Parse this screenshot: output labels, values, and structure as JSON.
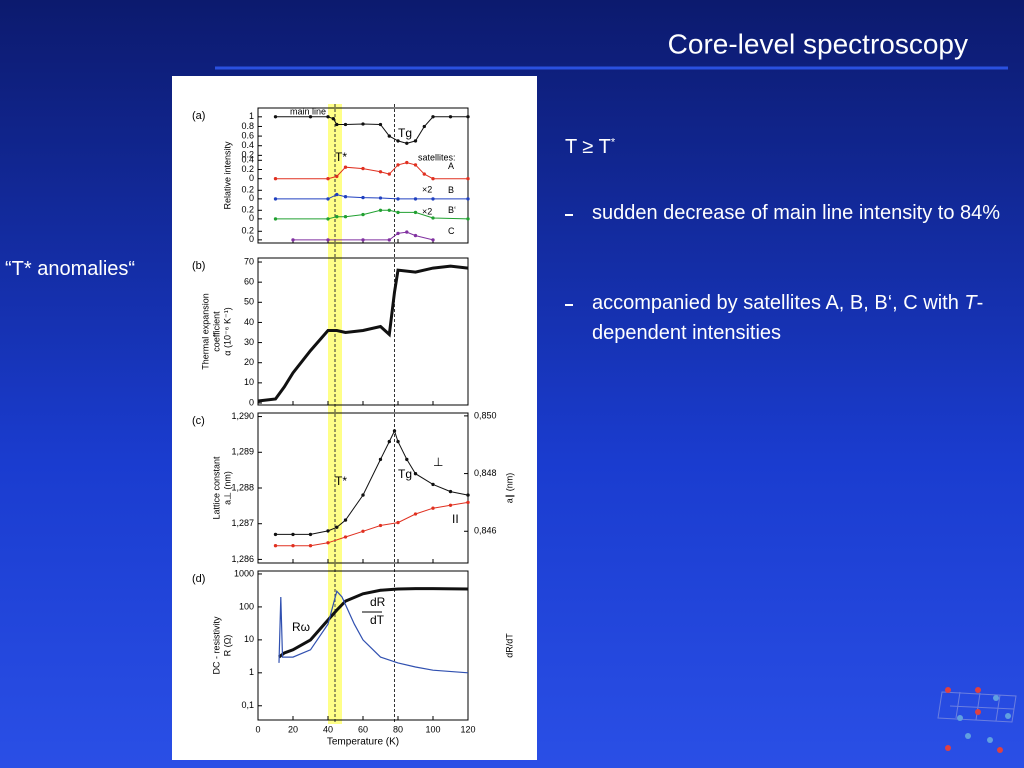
{
  "slide": {
    "title": "Core-level spectroscopy",
    "left_note": "“T* anomalies“",
    "heading": {
      "text": "T ≥ T",
      "sup": "*"
    },
    "bullets": [
      {
        "parts": [
          "sudden decrease of main line intensity to 84%"
        ]
      },
      {
        "parts": [
          "accompanied by satellites A, B, B‘, C with ",
          "T",
          "-dependent intensities"
        ]
      }
    ]
  },
  "figure": {
    "xlim": [
      0,
      120
    ],
    "xticks": [
      0,
      20,
      40,
      60,
      80,
      100,
      120
    ],
    "xlabel": "Temperature (K)",
    "tstar": 44,
    "tstar_band": [
      40,
      48
    ],
    "tg": 78,
    "panels": [
      {
        "label": "(a)",
        "ylabel": [
          "Relative intensity"
        ],
        "annotations": [
          "main line",
          "T*",
          "Tg",
          "satellites:",
          "×2",
          "×2"
        ],
        "traces": [
          {
            "name": "main line",
            "color": "#111111",
            "ylim": [
              0,
              1.1
            ],
            "yticks": [
              1,
              0.8,
              0.6,
              0.4,
              0.2
            ],
            "x": [
              10,
              30,
              40,
              43,
              45,
              50,
              60,
              70,
              75,
              80,
              85,
              90,
              95,
              100,
              110,
              120
            ],
            "values": [
              1,
              1,
              1,
              0.96,
              0.84,
              0.84,
              0.85,
              0.84,
              0.6,
              0.5,
              0.45,
              0.5,
              0.8,
              1,
              1,
              1
            ]
          },
          {
            "name": "A",
            "color": "#e03020",
            "ylim": [
              -0.05,
              0.45
            ],
            "yticks": [
              0.4,
              0.2,
              0
            ],
            "x": [
              10,
              40,
              45,
              50,
              60,
              70,
              75,
              80,
              85,
              90,
              95,
              100,
              120
            ],
            "values": [
              0,
              0,
              0.05,
              0.25,
              0.22,
              0.15,
              0.1,
              0.3,
              0.35,
              0.3,
              0.1,
              0,
              0
            ]
          },
          {
            "name": "B",
            "color": "#2040c0",
            "ylim": [
              -0.05,
              0.3
            ],
            "yticks": [
              0.2,
              0
            ],
            "x": [
              10,
              40,
              45,
              50,
              60,
              70,
              80,
              90,
              100,
              120
            ],
            "values": [
              0,
              0,
              0.1,
              0.05,
              0.03,
              0.02,
              0,
              0,
              0,
              0
            ]
          },
          {
            "name": "B‘",
            "color": "#20a030",
            "ylim": [
              -0.05,
              0.3
            ],
            "yticks": [
              0.2,
              0
            ],
            "x": [
              10,
              40,
              45,
              50,
              60,
              70,
              75,
              80,
              90,
              100,
              120
            ],
            "values": [
              0,
              0,
              0.05,
              0.05,
              0.1,
              0.2,
              0.2,
              0.15,
              0.15,
              0.02,
              0
            ]
          },
          {
            "name": "C",
            "color": "#8030a0",
            "ylim": [
              -0.05,
              0.3
            ],
            "yticks": [
              0.2,
              0
            ],
            "x": [
              20,
              40,
              60,
              75,
              80,
              85,
              90,
              100
            ],
            "values": [
              0,
              0,
              0,
              0,
              0.15,
              0.18,
              0.1,
              0
            ]
          }
        ]
      },
      {
        "label": "(b)",
        "ylabel": [
          "Thermal expansion",
          "coefficient",
          "α (10⁻⁶ K⁻¹)"
        ],
        "annotations": [],
        "ylim": [
          -1,
          72
        ],
        "yticks": [
          0,
          10,
          20,
          30,
          40,
          50,
          60,
          70
        ],
        "series": [
          {
            "color": "#111111",
            "x": [
              0,
              10,
              15,
              20,
              30,
              40,
              45,
              50,
              60,
              70,
              75,
              78,
              80,
              90,
              100,
              110,
              120
            ],
            "values": [
              1,
              2,
              8,
              15,
              26,
              36,
              36,
              35,
              36,
              38,
              34,
              55,
              66,
              65,
              67,
              68,
              67
            ]
          }
        ]
      },
      {
        "label": "(c)",
        "ylabel": [
          "Lattice constant",
          "a⊥ (nm)"
        ],
        "y2label": "a∥ (nm)",
        "annotations": [
          "T*",
          "Tg",
          "⊥",
          "II"
        ],
        "ylim": [
          1.2859,
          1.2901
        ],
        "yticks": [
          {
            "value": 1.29,
            "label": "1,290"
          },
          {
            "value": 1.289,
            "label": "1,289"
          },
          {
            "value": 1.288,
            "label": "1,288"
          },
          {
            "value": 1.287,
            "label": "1,287"
          },
          {
            "value": 1.286,
            "label": "1,286"
          }
        ],
        "y2lim": [
          0.8449,
          0.8501
        ],
        "y2ticks": [
          {
            "value": 0.85,
            "label": "0,850"
          },
          {
            "value": 0.848,
            "label": "0,848"
          },
          {
            "value": 0.846,
            "label": "0,846"
          }
        ],
        "series": [
          {
            "color": "#111111",
            "x": [
              10,
              20,
              30,
              40,
              45,
              50,
              60,
              70,
              75,
              78,
              80,
              85,
              90,
              100,
              110,
              120
            ],
            "values": [
              1.2867,
              1.2867,
              1.2867,
              1.2868,
              1.2869,
              1.2871,
              1.2878,
              1.2888,
              1.2893,
              1.2896,
              1.2893,
              1.2888,
              1.2884,
              1.2881,
              1.2879,
              1.2878
            ]
          },
          {
            "color": "#e03020",
            "axis": "y2",
            "x": [
              10,
              20,
              30,
              40,
              50,
              60,
              70,
              80,
              90,
              100,
              110,
              120
            ],
            "values": [
              0.8455,
              0.8455,
              0.8455,
              0.8456,
              0.8458,
              0.846,
              0.8462,
              0.8463,
              0.8466,
              0.8468,
              0.8469,
              0.847
            ]
          }
        ]
      },
      {
        "label": "(d)",
        "ylabel": [
          "DC - resistivity",
          "R (Ω)"
        ],
        "y2label": "dR/dT",
        "annotations": [
          "Rω",
          "dR",
          "dT"
        ],
        "log": true,
        "ylim": [
          0.037,
          1230
        ],
        "yticks": [
          1000,
          100,
          10,
          1,
          {
            "value": 0.1,
            "label": "0,1"
          }
        ],
        "y2lim": [
          0.037,
          1230
        ],
        "series": [
          {
            "color": "#111111",
            "x": [
              12,
              15,
              20,
              30,
              40,
              45,
              50,
              60,
              70,
              80,
              90,
              100,
              120
            ],
            "values": [
              3,
              4,
              5,
              10,
              40,
              80,
              150,
              250,
              320,
              350,
              360,
              360,
              350
            ]
          },
          {
            "color": "#3050b0",
            "axis": "y2",
            "x": [
              12,
              13,
              14,
              20,
              30,
              40,
              45,
              48,
              55,
              60,
              70,
              80,
              90,
              100,
              120
            ],
            "values": [
              2,
              200,
              3,
              3,
              5,
              30,
              300,
              200,
              30,
              10,
              3,
              2,
              1.5,
              1.2,
              1
            ]
          }
        ]
      }
    ]
  }
}
